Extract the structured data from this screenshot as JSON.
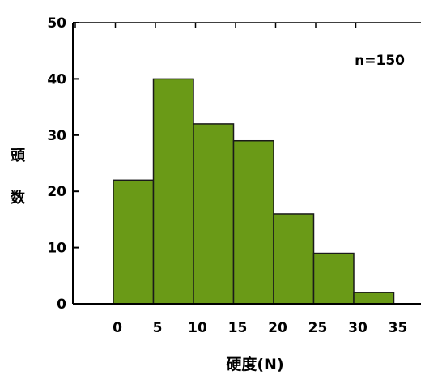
{
  "chart_data": {
    "type": "bar",
    "histogram": true,
    "bins": [
      [
        0,
        5
      ],
      [
        5,
        10
      ],
      [
        10,
        15
      ],
      [
        15,
        20
      ],
      [
        20,
        25
      ],
      [
        25,
        30
      ],
      [
        30,
        35
      ]
    ],
    "values": [
      22,
      40,
      32,
      29,
      16,
      9,
      2
    ],
    "xticks": [
      "0",
      "5",
      "10",
      "15",
      "20",
      "25",
      "30",
      "35"
    ],
    "yticks": [
      "0",
      "10",
      "20",
      "30",
      "40",
      "50"
    ],
    "xlim": [
      0,
      35
    ],
    "ylim": [
      0,
      50
    ],
    "xlabel": "硬度(N)",
    "ylabel": "頭数",
    "annotation": "n=150",
    "grid": false,
    "colors": {
      "bar_fill": "#6a9a17",
      "bar_stroke": "#1a1a1a",
      "axis": "#000000"
    }
  }
}
